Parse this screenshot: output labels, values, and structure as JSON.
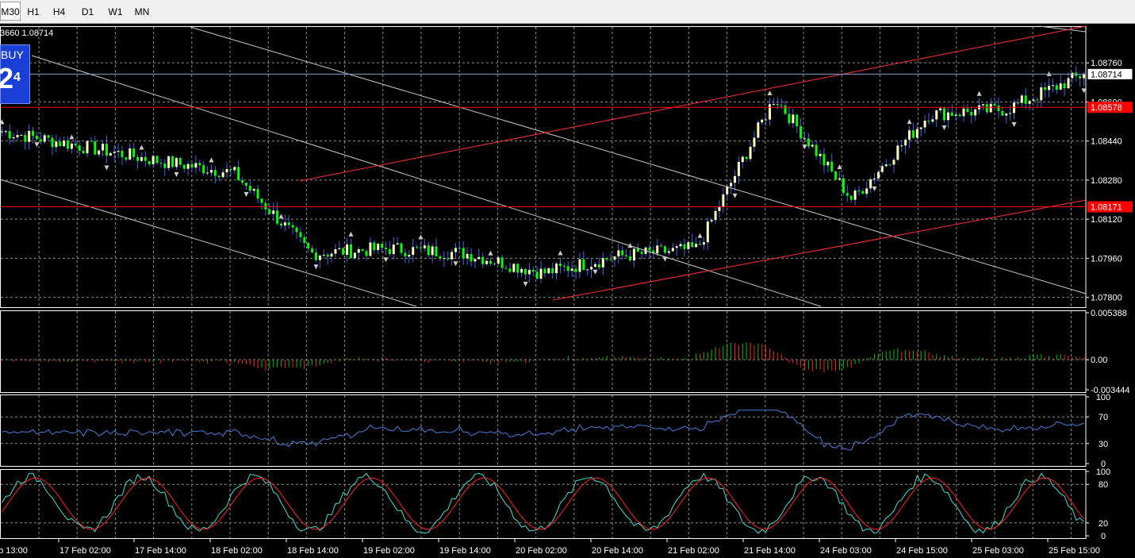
{
  "timeframes": [
    {
      "label": "M30",
      "selected": true
    },
    {
      "label": "H1",
      "selected": false
    },
    {
      "label": "H4",
      "selected": false
    },
    {
      "label": "D1",
      "selected": false
    },
    {
      "label": "W1",
      "selected": false
    },
    {
      "label": "MN",
      "selected": false
    }
  ],
  "ohlc_text": "3660 1.08714",
  "buy_panel": {
    "label": "BUY",
    "price": "2",
    "superscript": "4"
  },
  "colors": {
    "bull": "#ffffc0",
    "bear": "#00ff00",
    "wick": "#4169e1",
    "grid": "#8a8a8a",
    "level": "#ff0000",
    "channel": "#c8c8c8",
    "trend": "#ff3030",
    "rsi": "#4a7bd9",
    "stoch_main": "#40e0d0",
    "stoch_signal": "#ff2020",
    "osma_up": "#00c000",
    "osma_down": "#ff2020"
  },
  "price_axis": {
    "ticks": [
      "1.08760",
      "1.08600",
      "1.08440",
      "1.08280",
      "1.08120",
      "1.07960",
      "1.07800"
    ]
  },
  "price_labels": [
    {
      "value": "1.08714",
      "kind": "bid"
    },
    {
      "value": "1.08578",
      "kind": "level"
    },
    {
      "value": "1.08171",
      "kind": "level"
    }
  ],
  "osma_axis": {
    "ticks": [
      "0.005388",
      "0.00",
      "-0.003444"
    ]
  },
  "rsi_axis": {
    "ticks": [
      "100",
      "70",
      "30",
      "0"
    ]
  },
  "stoch_axis": {
    "ticks": [
      "100",
      "80",
      "20",
      "0"
    ]
  },
  "time_axis": {
    "labels": [
      "eb 13:00",
      "17 Feb 02:00",
      "17 Feb 14:00",
      "18 Feb 02:00",
      "18 Feb 14:00",
      "19 Feb 02:00",
      "19 Feb 14:00",
      "20 Feb 02:00",
      "20 Feb 14:00",
      "21 Feb 02:00",
      "21 Feb 14:00",
      "24 Feb 03:00",
      "24 Feb 15:00",
      "25 Feb 03:00",
      "25 Feb 15:00"
    ]
  },
  "chart_data": {
    "type": "candlestick",
    "symbol_timeframe": "M30",
    "price_range": [
      1.0776,
      1.0891
    ],
    "key_points": [
      {
        "time": "eb 13:00",
        "close": 1.0848
      },
      {
        "time": "17 Feb 02:00",
        "close": 1.0842
      },
      {
        "time": "17 Feb 14:00",
        "close": 1.0836
      },
      {
        "time": "18 Feb 02:00",
        "close": 1.0831
      },
      {
        "time": "18 Feb 14:00",
        "close": 1.0798
      },
      {
        "time": "19 Feb 02:00",
        "close": 1.08
      },
      {
        "time": "19 Feb 14:00",
        "close": 1.0798
      },
      {
        "time": "20 Feb 02:00",
        "close": 1.079
      },
      {
        "time": "20 Feb 14:00",
        "close": 1.0797
      },
      {
        "time": "21 Feb 02:00",
        "close": 1.08
      },
      {
        "time": "21 Feb 14:00",
        "close": 1.0862
      },
      {
        "time": "24 Feb 03:00",
        "close": 1.082
      },
      {
        "time": "24 Feb 15:00",
        "close": 1.0855
      },
      {
        "time": "25 Feb 03:00",
        "close": 1.0857
      },
      {
        "time": "25 Feb 15:00",
        "close": 1.08714
      }
    ],
    "horizontal_levels": [
      1.08578,
      1.08171
    ],
    "osma_range": [
      -0.003444,
      0.005388
    ],
    "rsi_levels": [
      70,
      30
    ],
    "stoch_levels": [
      80,
      20
    ]
  }
}
